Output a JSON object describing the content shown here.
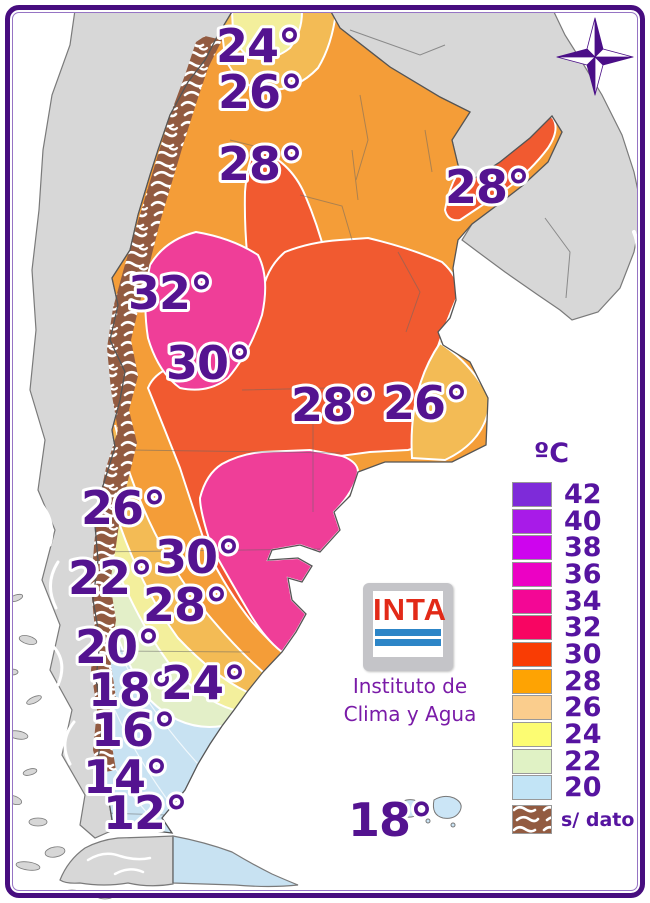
{
  "map": {
    "temperature_labels": [
      {
        "text": "24°"
      },
      {
        "text": "26°"
      },
      {
        "text": "28°"
      },
      {
        "text": "28°"
      },
      {
        "text": "32°"
      },
      {
        "text": "30°"
      },
      {
        "text": "28°"
      },
      {
        "text": "26°"
      },
      {
        "text": "26°"
      },
      {
        "text": "30°"
      },
      {
        "text": "28°"
      },
      {
        "text": "22°"
      },
      {
        "text": "20°"
      },
      {
        "text": "18°"
      },
      {
        "text": "24°"
      },
      {
        "text": "16°"
      },
      {
        "text": "14°"
      },
      {
        "text": "12°"
      },
      {
        "text": "18°"
      }
    ],
    "label_color": "#541390",
    "zone_colors": {
      "zone_30": "#F15A30",
      "zone_32_34": "#EF3E98",
      "zone_28": "#F49D38",
      "zone_26": "#F3BB55",
      "zone_24": "#F3EF9C",
      "zone_22": "#E3EFC8",
      "zone_20_and_below": "#C8E2F2",
      "no_data_brown": "#925B41",
      "neighboring_land": "#D7D7D7"
    }
  },
  "legend": {
    "title": "ºC",
    "rows": [
      {
        "value": "42",
        "color": "#7E2BD9"
      },
      {
        "value": "40",
        "color": "#A81BE8"
      },
      {
        "value": "38",
        "color": "#CE04EE"
      },
      {
        "value": "36",
        "color": "#EC01C4"
      },
      {
        "value": "34",
        "color": "#F30795"
      },
      {
        "value": "32",
        "color": "#F80562"
      },
      {
        "value": "30",
        "color": "#F93C04"
      },
      {
        "value": "28",
        "color": "#FEA303"
      },
      {
        "value": "26",
        "color": "#FACD8D"
      },
      {
        "value": "24",
        "color": "#FCFC72"
      },
      {
        "value": "22",
        "color": "#E0F2C5"
      },
      {
        "value": "20",
        "color": "#C2E4F6"
      }
    ],
    "no_data_label": "s/ dato"
  },
  "branding": {
    "logo_text": "INTA",
    "org_line1": "Instituto de",
    "org_line2": "Clima y Agua"
  }
}
